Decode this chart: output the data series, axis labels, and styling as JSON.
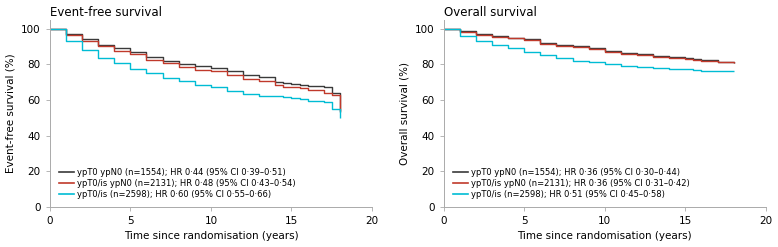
{
  "efs": {
    "title": "Event-free survival",
    "ylabel": "Event-free survival (%)",
    "xlabel": "Time since randomisation (years)",
    "ylim": [
      0,
      105
    ],
    "xlim": [
      0,
      20
    ],
    "yticks": [
      0,
      20,
      40,
      60,
      80,
      100
    ],
    "xticks": [
      0,
      5,
      10,
      15,
      20
    ],
    "curves": [
      {
        "label": "ypT0 ypN0 (n=1554); HR 0·44 (95% CI 0·39–0·51)",
        "color": "#3a3a3a",
        "x": [
          0,
          1,
          2,
          3,
          4,
          5,
          6,
          7,
          8,
          9,
          10,
          11,
          12,
          13,
          14,
          14.5,
          15,
          15.5,
          16,
          17,
          17.5,
          18
        ],
        "y": [
          100,
          97,
          94,
          91,
          89,
          87,
          84,
          82,
          80,
          79,
          78,
          76,
          74,
          73,
          70,
          69.5,
          69,
          68.5,
          68,
          67,
          64,
          53
        ]
      },
      {
        "label": "ypT0/is ypN0 (n=2131); HR 0·48 (95% CI 0·43–0·54)",
        "color": "#c0392b",
        "x": [
          0,
          1,
          2,
          3,
          4,
          5,
          6,
          7,
          8,
          9,
          10,
          11,
          12,
          13,
          14,
          14.5,
          15,
          15.5,
          16,
          17,
          17.5,
          18
        ],
        "y": [
          100,
          96.5,
          93,
          90,
          87.5,
          85.5,
          82.5,
          80.5,
          78.5,
          77,
          76,
          74,
          72,
          70.5,
          68.5,
          67.5,
          67,
          66.5,
          65.5,
          64,
          63,
          54
        ]
      },
      {
        "label": "ypT0/is (n=2598); HR 0·60 (95% CI 0·55–0·66)",
        "color": "#00bcd4",
        "x": [
          0,
          1,
          2,
          3,
          4,
          5,
          6,
          7,
          8,
          9,
          10,
          11,
          12,
          13,
          14,
          14.5,
          15,
          15.5,
          16,
          17,
          17.5,
          18
        ],
        "y": [
          100,
          93,
          88,
          83.5,
          80.5,
          77.5,
          75,
          72.5,
          70.5,
          68.5,
          67,
          65,
          63.5,
          62,
          62,
          61.8,
          61,
          60.5,
          59.5,
          59,
          55,
          50
        ]
      }
    ]
  },
  "os": {
    "title": "Overall survival",
    "ylabel": "Overall survival (%)",
    "xlabel": "Time since randomisation (years)",
    "ylim": [
      0,
      105
    ],
    "xlim": [
      0,
      20
    ],
    "yticks": [
      0,
      20,
      40,
      60,
      80,
      100
    ],
    "xticks": [
      0,
      5,
      10,
      15,
      20
    ],
    "curves": [
      {
        "label": "ypT0 ypN0 (n=1554); HR 0·36 (95% CI 0·30–0·44)",
        "color": "#3a3a3a",
        "x": [
          0,
          1,
          2,
          3,
          4,
          5,
          6,
          7,
          8,
          9,
          10,
          11,
          12,
          13,
          14,
          15,
          15.5,
          16,
          17,
          18
        ],
        "y": [
          100,
          98.5,
          97,
          96,
          95,
          94,
          92,
          91,
          90,
          89,
          87.5,
          86.5,
          85.5,
          84.5,
          84,
          83.5,
          83,
          82.5,
          81,
          80.5
        ]
      },
      {
        "label": "ypT0/is ypN0 (n=2131); HR 0·36 (95% CI 0·31–0·42)",
        "color": "#c0392b",
        "x": [
          0,
          1,
          2,
          3,
          4,
          5,
          6,
          7,
          8,
          9,
          10,
          11,
          12,
          13,
          14,
          15,
          15.5,
          16,
          17,
          18
        ],
        "y": [
          100,
          98,
          96.5,
          95.5,
          94.5,
          93.5,
          91.5,
          90.5,
          89.5,
          88.5,
          87,
          86,
          85,
          84,
          83.5,
          83,
          82.5,
          82,
          81,
          80.5
        ]
      },
      {
        "label": "ypT0/is (n=2598); HR 0·51 (95% CI 0·45–0·58)",
        "color": "#00bcd4",
        "x": [
          0,
          1,
          2,
          3,
          4,
          5,
          6,
          7,
          8,
          9,
          10,
          11,
          12,
          13,
          14,
          15,
          15.5,
          16,
          17,
          18
        ],
        "y": [
          100,
          96,
          93,
          91,
          89,
          87,
          85,
          83.5,
          82,
          81,
          80,
          79,
          78.5,
          78,
          77.5,
          77.5,
          77,
          76.5,
          76.5,
          76
        ]
      }
    ]
  },
  "background_color": "#ffffff",
  "spine_color": "#aaaaaa",
  "legend_fontsize": 6.0,
  "title_fontsize": 8.5,
  "axis_label_fontsize": 7.5,
  "tick_fontsize": 7.5
}
